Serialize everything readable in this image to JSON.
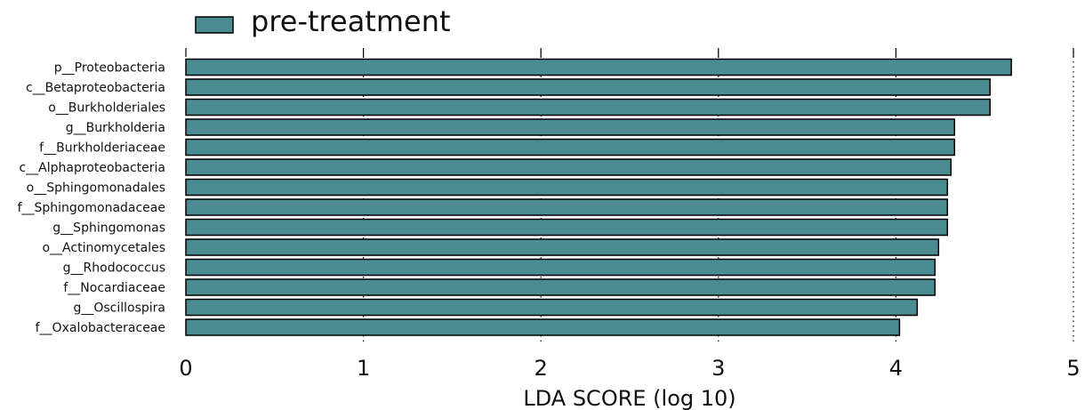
{
  "chart_data": {
    "type": "bar",
    "orientation": "horizontal",
    "categories": [
      "p__Proteobacteria",
      "c__Betaproteobacteria",
      "o__Burkholderiales",
      "g__Burkholderia",
      "f__Burkholderiaceae",
      "c__Alphaproteobacteria",
      "o__Sphingomonadales",
      "f__Sphingomonadaceae",
      "g__Sphingomonas",
      "o__Actinomycetales",
      "g__Rhodococcus",
      "f__Nocardiaceae",
      "g__Oscillospira",
      "f__Oxalobacteraceae"
    ],
    "series": [
      {
        "name": "pre-treatment",
        "color": "#4a8c91",
        "values": [
          4.65,
          4.53,
          4.53,
          4.33,
          4.33,
          4.31,
          4.29,
          4.29,
          4.29,
          4.24,
          4.22,
          4.22,
          4.12,
          4.02
        ]
      }
    ],
    "xlabel": "LDA SCORE (log 10)",
    "ylabel": "",
    "xlim": [
      0,
      5
    ],
    "xticks": [
      "0",
      "1",
      "2",
      "3",
      "4",
      "5"
    ],
    "grid": "vertical dotted",
    "legend_position": "top-left"
  }
}
